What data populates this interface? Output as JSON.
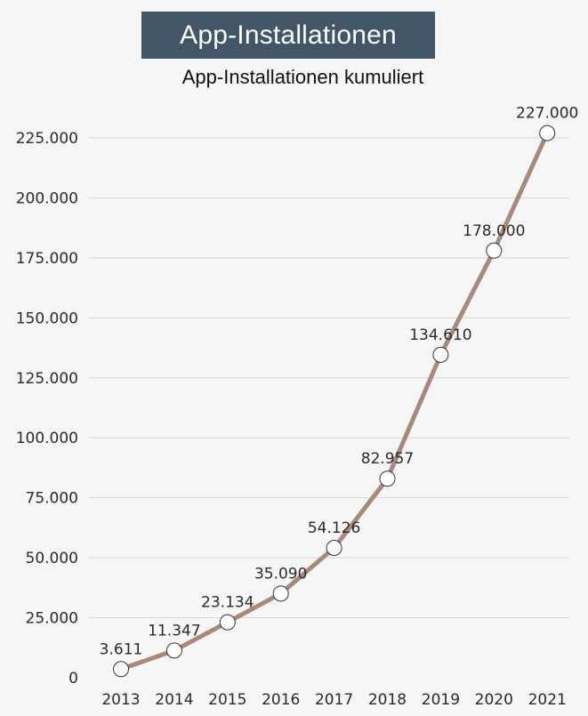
{
  "chart_data": {
    "type": "line",
    "title": "App-Installationen",
    "subtitle": "App-Installationen kumuliert",
    "x": [
      "2013",
      "2014",
      "2015",
      "2016",
      "2017",
      "2018",
      "2019",
      "2020",
      "2021"
    ],
    "series": [
      {
        "values": [
          3611,
          11347,
          23134,
          35090,
          54126,
          82957,
          134610,
          178000,
          227000
        ],
        "data_labels": [
          "3.611",
          "11.347",
          "23.134",
          "35.090",
          "54.126",
          "82.957",
          "134.610",
          "178.000",
          "227.000"
        ],
        "color": "#a8897b"
      }
    ],
    "y_ticks": [
      0,
      25000,
      50000,
      75000,
      100000,
      125000,
      150000,
      175000,
      200000,
      225000
    ],
    "y_tick_labels": [
      "0",
      "25.000",
      "50.000",
      "75.000",
      "100.000",
      "125.000",
      "150.000",
      "175.000",
      "200.000",
      "225.000"
    ],
    "ylim": [
      0,
      225000
    ],
    "grid": true,
    "legend": "none"
  },
  "colors": {
    "background": "#f7f6f7",
    "title_badge": "#425668",
    "line": "#a8897b",
    "grid": "#d6d6d6"
  }
}
